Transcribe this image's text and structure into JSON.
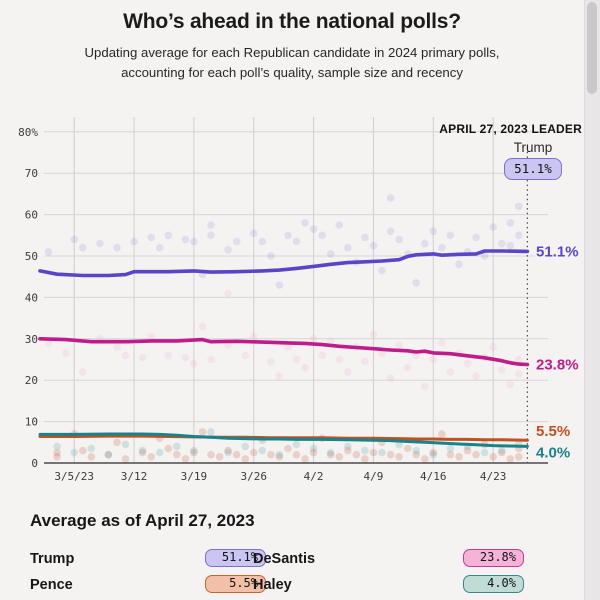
{
  "chart_data": {
    "type": "line",
    "title": "Who’s ahead in the national polls?",
    "subtitle": "Updating average for each Republican candidate in 2024 primary polls, accounting for each poll’s quality, sample size and recency",
    "x_axis": {
      "tick_labels": [
        "3/5/23",
        "3/12",
        "3/19",
        "3/26",
        "4/2",
        "4/9",
        "4/16",
        "4/23"
      ],
      "tick_days": [
        4,
        11,
        18,
        25,
        32,
        39,
        46,
        53
      ],
      "domain_days": [
        0,
        57
      ],
      "start_date": "3/1/23",
      "end_date": "4/27/23"
    },
    "y_axis": {
      "ticks": [
        0,
        10,
        20,
        30,
        40,
        50,
        60,
        70,
        80
      ],
      "top_label": "80%",
      "range": [
        0,
        80
      ],
      "grid": true
    },
    "annotation": {
      "kicker": "APRIL 27, 2023 LEADER",
      "leader_name": "Trump",
      "leader_value": "51.1%"
    },
    "series": [
      {
        "name": "Trump",
        "color": "#5b45c6",
        "end_label": "51.1%",
        "end_value": 51.1,
        "avg": [
          [
            0,
            46.4
          ],
          [
            2,
            45.6
          ],
          [
            5,
            45.3
          ],
          [
            8,
            45.3
          ],
          [
            10,
            45.5
          ],
          [
            11,
            46.2
          ],
          [
            15,
            46.2
          ],
          [
            18,
            46.4
          ],
          [
            20,
            46.1
          ],
          [
            23,
            46.2
          ],
          [
            26,
            46.4
          ],
          [
            28,
            46.6
          ],
          [
            30,
            47.0
          ],
          [
            32,
            47.5
          ],
          [
            34,
            48.0
          ],
          [
            36,
            48.4
          ],
          [
            38,
            48.6
          ],
          [
            40,
            48.8
          ],
          [
            42,
            49.1
          ],
          [
            43,
            49.9
          ],
          [
            44,
            50.3
          ],
          [
            46,
            50.5
          ],
          [
            47,
            50.2
          ],
          [
            49,
            50.4
          ],
          [
            51,
            50.5
          ],
          [
            52,
            51.2
          ],
          [
            54,
            51.2
          ],
          [
            57,
            51.1
          ]
        ]
      },
      {
        "name": "DeSantis",
        "color": "#bf1b8b",
        "end_label": "23.8%",
        "end_value": 23.8,
        "avg": [
          [
            0,
            30.0
          ],
          [
            3,
            29.8
          ],
          [
            6,
            29.3
          ],
          [
            10,
            29.3
          ],
          [
            13,
            29.5
          ],
          [
            16,
            29.5
          ],
          [
            19,
            29.8
          ],
          [
            20,
            29.3
          ],
          [
            23,
            29.4
          ],
          [
            26,
            29.2
          ],
          [
            29,
            29.0
          ],
          [
            31,
            28.9
          ],
          [
            33,
            28.6
          ],
          [
            35,
            28.2
          ],
          [
            37,
            27.9
          ],
          [
            39,
            27.6
          ],
          [
            41,
            27.3
          ],
          [
            43,
            27.1
          ],
          [
            44,
            26.8
          ],
          [
            45,
            27.0
          ],
          [
            46,
            26.6
          ],
          [
            48,
            26.4
          ],
          [
            50,
            25.9
          ],
          [
            52,
            25.4
          ],
          [
            54,
            24.7
          ],
          [
            55,
            24.2
          ],
          [
            56,
            23.9
          ],
          [
            57,
            23.8
          ]
        ]
      },
      {
        "name": "Pence",
        "color": "#c05222",
        "end_label": "5.5%",
        "end_value": 5.5,
        "avg": [
          [
            0,
            6.4
          ],
          [
            4,
            6.4
          ],
          [
            8,
            6.5
          ],
          [
            12,
            6.5
          ],
          [
            15,
            6.4
          ],
          [
            18,
            6.3
          ],
          [
            21,
            6.2
          ],
          [
            24,
            6.2
          ],
          [
            27,
            6.1
          ],
          [
            30,
            6.1
          ],
          [
            33,
            6.1
          ],
          [
            36,
            6.0
          ],
          [
            39,
            6.0
          ],
          [
            42,
            5.9
          ],
          [
            44,
            5.8
          ],
          [
            46,
            5.8
          ],
          [
            48,
            5.7
          ],
          [
            50,
            5.7
          ],
          [
            52,
            5.6
          ],
          [
            54,
            5.6
          ],
          [
            57,
            5.5
          ]
        ]
      },
      {
        "name": "Haley",
        "color": "#17838a",
        "end_label": "4.0%",
        "end_value": 4.0,
        "avg": [
          [
            0,
            6.9
          ],
          [
            4,
            6.9
          ],
          [
            8,
            7.0
          ],
          [
            12,
            7.0
          ],
          [
            14,
            6.9
          ],
          [
            16,
            6.7
          ],
          [
            18,
            6.4
          ],
          [
            20,
            6.2
          ],
          [
            22,
            6.0
          ],
          [
            24,
            5.9
          ],
          [
            26,
            5.8
          ],
          [
            28,
            5.8
          ],
          [
            30,
            5.7
          ],
          [
            33,
            5.7
          ],
          [
            36,
            5.6
          ],
          [
            39,
            5.5
          ],
          [
            41,
            5.4
          ],
          [
            43,
            5.2
          ],
          [
            45,
            5.0
          ],
          [
            47,
            4.8
          ],
          [
            49,
            4.6
          ],
          [
            51,
            4.4
          ],
          [
            53,
            4.2
          ],
          [
            55,
            4.1
          ],
          [
            57,
            4.0
          ]
        ]
      }
    ],
    "polls_scatter": {
      "trump": [
        [
          1,
          51
        ],
        [
          4,
          54
        ],
        [
          5,
          52
        ],
        [
          7,
          53
        ],
        [
          9,
          52
        ],
        [
          11,
          53.5
        ],
        [
          13,
          54.5
        ],
        [
          14,
          52
        ],
        [
          15,
          55
        ],
        [
          17,
          54
        ],
        [
          18,
          53.5
        ],
        [
          19,
          45.5
        ],
        [
          20,
          57.5
        ],
        [
          20,
          55
        ],
        [
          22,
          51.5
        ],
        [
          23,
          53.5
        ],
        [
          25,
          55.5
        ],
        [
          26,
          53.5
        ],
        [
          27,
          50
        ],
        [
          28,
          43
        ],
        [
          29,
          55
        ],
        [
          30,
          53.5
        ],
        [
          31,
          58
        ],
        [
          32,
          56.5
        ],
        [
          33,
          55
        ],
        [
          34,
          50.5
        ],
        [
          35,
          57.5
        ],
        [
          36,
          52
        ],
        [
          37,
          48.5
        ],
        [
          38,
          54.5
        ],
        [
          39,
          52.5
        ],
        [
          40,
          46.5
        ],
        [
          41,
          64
        ],
        [
          41,
          56
        ],
        [
          42,
          54
        ],
        [
          43,
          50.5
        ],
        [
          44,
          43.5
        ],
        [
          45,
          53
        ],
        [
          46,
          56
        ],
        [
          47,
          52
        ],
        [
          48,
          55
        ],
        [
          49,
          48
        ],
        [
          50,
          51
        ],
        [
          51,
          54.5
        ],
        [
          52,
          50
        ],
        [
          53,
          57
        ],
        [
          54,
          53
        ],
        [
          55,
          58
        ],
        [
          55,
          52.5
        ],
        [
          56,
          62
        ],
        [
          56,
          55
        ]
      ],
      "desantis": [
        [
          1,
          29
        ],
        [
          3,
          26.5
        ],
        [
          5,
          22
        ],
        [
          7,
          30
        ],
        [
          9,
          28
        ],
        [
          10,
          26
        ],
        [
          12,
          25.5
        ],
        [
          13,
          30.5
        ],
        [
          15,
          26
        ],
        [
          17,
          25.5
        ],
        [
          18,
          24
        ],
        [
          19,
          33
        ],
        [
          20,
          25
        ],
        [
          22,
          41
        ],
        [
          22,
          28.5
        ],
        [
          24,
          26
        ],
        [
          25,
          30.5
        ],
        [
          27,
          24.5
        ],
        [
          28,
          21
        ],
        [
          29,
          28
        ],
        [
          30,
          25
        ],
        [
          31,
          23
        ],
        [
          32,
          30
        ],
        [
          33,
          26
        ],
        [
          34,
          29.5
        ],
        [
          35,
          25
        ],
        [
          36,
          22
        ],
        [
          37,
          28
        ],
        [
          38,
          24.5
        ],
        [
          39,
          31
        ],
        [
          40,
          26.5
        ],
        [
          41,
          20.5
        ],
        [
          42,
          28.5
        ],
        [
          43,
          23
        ],
        [
          44,
          26
        ],
        [
          45,
          18.5
        ],
        [
          46,
          25
        ],
        [
          47,
          29
        ],
        [
          48,
          22
        ],
        [
          49,
          26.5
        ],
        [
          50,
          24
        ],
        [
          51,
          21
        ],
        [
          52,
          25.5
        ],
        [
          53,
          28
        ],
        [
          54,
          22.5
        ],
        [
          55,
          19
        ],
        [
          56,
          25
        ],
        [
          56,
          21.5
        ]
      ],
      "pence": [
        [
          2,
          1.5
        ],
        [
          2,
          2.5
        ],
        [
          4,
          7
        ],
        [
          5,
          3
        ],
        [
          6,
          1.5
        ],
        [
          8,
          2
        ],
        [
          9,
          5
        ],
        [
          10,
          1
        ],
        [
          12,
          2.5
        ],
        [
          13,
          1.5
        ],
        [
          14,
          6
        ],
        [
          15,
          3.5
        ],
        [
          16,
          2
        ],
        [
          17,
          1
        ],
        [
          18,
          2.5
        ],
        [
          19,
          7.5
        ],
        [
          20,
          2
        ],
        [
          21,
          1.5
        ],
        [
          22,
          3
        ],
        [
          23,
          2
        ],
        [
          24,
          1
        ],
        [
          25,
          2.5
        ],
        [
          26,
          5.5
        ],
        [
          27,
          2
        ],
        [
          28,
          1.5
        ],
        [
          29,
          3.5
        ],
        [
          30,
          2
        ],
        [
          31,
          1
        ],
        [
          32,
          2.5
        ],
        [
          33,
          6
        ],
        [
          34,
          2
        ],
        [
          35,
          1.5
        ],
        [
          36,
          3
        ],
        [
          37,
          2
        ],
        [
          38,
          1
        ],
        [
          39,
          2.5
        ],
        [
          40,
          5
        ],
        [
          41,
          2
        ],
        [
          42,
          1.5
        ],
        [
          43,
          3.5
        ],
        [
          44,
          2
        ],
        [
          45,
          1
        ],
        [
          46,
          2.5
        ],
        [
          47,
          7
        ],
        [
          48,
          2
        ],
        [
          49,
          1.5
        ],
        [
          50,
          3
        ],
        [
          51,
          2
        ],
        [
          52,
          4.5
        ],
        [
          53,
          1.5
        ],
        [
          54,
          2.5
        ],
        [
          55,
          1
        ],
        [
          56,
          3.5
        ],
        [
          56,
          1.5
        ]
      ],
      "haley": [
        [
          2,
          4
        ],
        [
          4,
          2.5
        ],
        [
          6,
          3.5
        ],
        [
          8,
          2
        ],
        [
          10,
          4.5
        ],
        [
          12,
          3
        ],
        [
          14,
          2.5
        ],
        [
          16,
          4
        ],
        [
          18,
          3
        ],
        [
          20,
          7.5
        ],
        [
          22,
          2.5
        ],
        [
          24,
          4
        ],
        [
          26,
          3
        ],
        [
          28,
          2
        ],
        [
          30,
          4.5
        ],
        [
          32,
          3.5
        ],
        [
          34,
          2.5
        ],
        [
          36,
          4
        ],
        [
          38,
          3
        ],
        [
          40,
          2.5
        ],
        [
          42,
          4.5
        ],
        [
          44,
          3
        ],
        [
          46,
          2
        ],
        [
          48,
          3.5
        ],
        [
          50,
          4
        ],
        [
          52,
          2.5
        ],
        [
          54,
          3
        ],
        [
          56,
          4.5
        ]
      ]
    },
    "scatter_colors": {
      "trump": "#7e6dd6",
      "desantis": "#ee9ecb",
      "pence": "#bf5630",
      "haley": "#4c9ea3"
    },
    "grid_color": "#d8d5d5",
    "axis_color": "#2b2b2b",
    "background": "#f5f2f2"
  },
  "legend": {
    "heading": "Average as of April 27, 2023",
    "items": [
      {
        "name": "Trump",
        "value": "51.1%",
        "badge_bg": "#cbc5f1",
        "badge_border": "#7b6fd0"
      },
      {
        "name": "DeSantis",
        "value": "23.8%",
        "badge_bg": "#f6b3d8",
        "badge_border": "#c43b96"
      },
      {
        "name": "Pence",
        "value": "5.5%",
        "badge_bg": "#f2c0a8",
        "badge_border": "#c4642f"
      },
      {
        "name": "Haley",
        "value": "4.0%",
        "badge_bg": "#bfdcd6",
        "badge_border": "#3d858a"
      }
    ]
  }
}
